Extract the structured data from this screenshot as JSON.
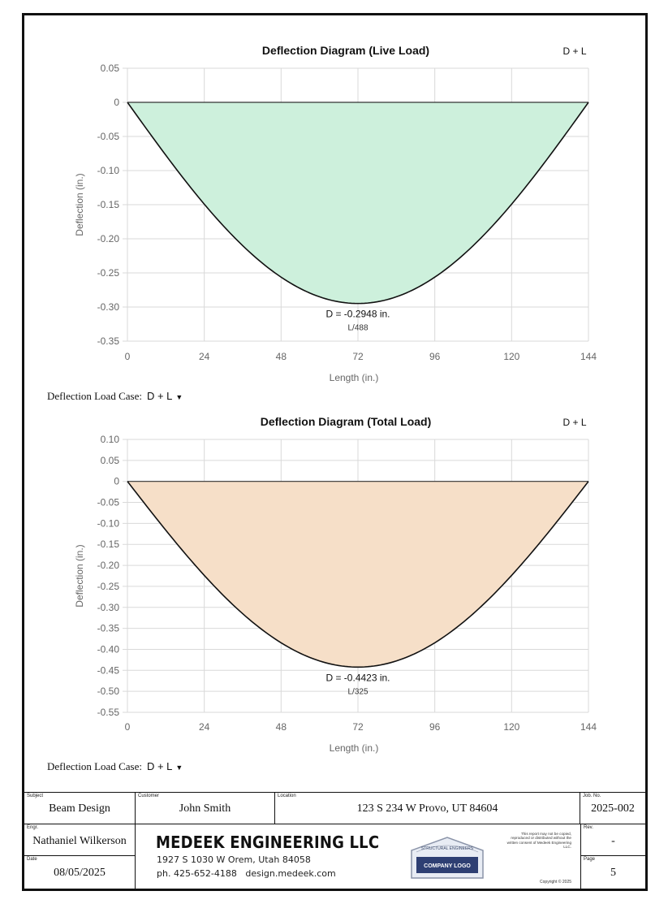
{
  "chart_data": [
    {
      "type": "area",
      "title": "Deflection Diagram (Live Load)",
      "case_tag": "D + L",
      "xlabel": "Length (in.)",
      "ylabel": "Deflection (in.)",
      "xlim": [
        0,
        144
      ],
      "ylim": [
        -0.35,
        0.05
      ],
      "x_ticks": [
        0,
        24,
        48,
        72,
        96,
        120,
        144
      ],
      "y_ticks": [
        0.05,
        0,
        -0.05,
        -0.1,
        -0.15,
        -0.2,
        -0.25,
        -0.3,
        -0.35
      ],
      "y_tick_labels": [
        "0.05",
        "0",
        "-0.05",
        "-0.10",
        "-0.15",
        "-0.20",
        "-0.25",
        "-0.30",
        "-0.35"
      ],
      "max_deflection": -0.2948,
      "max_at_x": 72,
      "annotation": "D = -0.2948 in.",
      "ratio": "L/488",
      "fill": "#cdf0dc"
    },
    {
      "type": "area",
      "title": "Deflection Diagram (Total Load)",
      "case_tag": "D + L",
      "xlabel": "Length (in.)",
      "ylabel": "Deflection (in.)",
      "xlim": [
        0,
        144
      ],
      "ylim": [
        -0.55,
        0.1
      ],
      "x_ticks": [
        0,
        24,
        48,
        72,
        96,
        120,
        144
      ],
      "y_ticks": [
        0.1,
        0.05,
        0,
        -0.05,
        -0.1,
        -0.15,
        -0.2,
        -0.25,
        -0.3,
        -0.35,
        -0.4,
        -0.45,
        -0.5,
        -0.55
      ],
      "y_tick_labels": [
        "0.10",
        "0.05",
        "0",
        "-0.05",
        "-0.10",
        "-0.15",
        "-0.20",
        "-0.25",
        "-0.30",
        "-0.35",
        "-0.40",
        "-0.45",
        "-0.50",
        "-0.55"
      ],
      "max_deflection": -0.4423,
      "max_at_x": 72,
      "annotation": "D = -0.4423 in.",
      "ratio": "L/325",
      "fill": "#f6dfc8"
    }
  ],
  "load_case": {
    "label": "Deflection Load Case:",
    "value": "D + L",
    "arrow": "▼"
  },
  "title_block": {
    "subject_label": "Subject",
    "subject": "Beam Design",
    "customer_label": "Customer",
    "customer": "John Smith",
    "location_label": "Location",
    "location": "123 S 234 W Provo, UT 84604",
    "job_label": "Job. No.",
    "job": "2025-002",
    "engr_label": "Engr.",
    "engr": "Nathaniel Wilkerson",
    "rev_label": "Rev.",
    "rev": "-",
    "date_label": "Date",
    "date": "08/05/2025",
    "page_label": "Page",
    "page": "5",
    "company": "MEDEEK ENGINEERING LLC",
    "address": "1927 S 1030 W Orem, Utah 84058",
    "phone": "ph. 425-652-4188",
    "website": "design.medeek.com",
    "disclaimer": "This report may not be copied, reproduced or distributed without the written consent of Medeek Engineering LLC.",
    "copyright": "Copyright © 2025",
    "logo_top": "STRUCTURAL ENGINEERS",
    "logo_text": "COMPANY LOGO"
  }
}
